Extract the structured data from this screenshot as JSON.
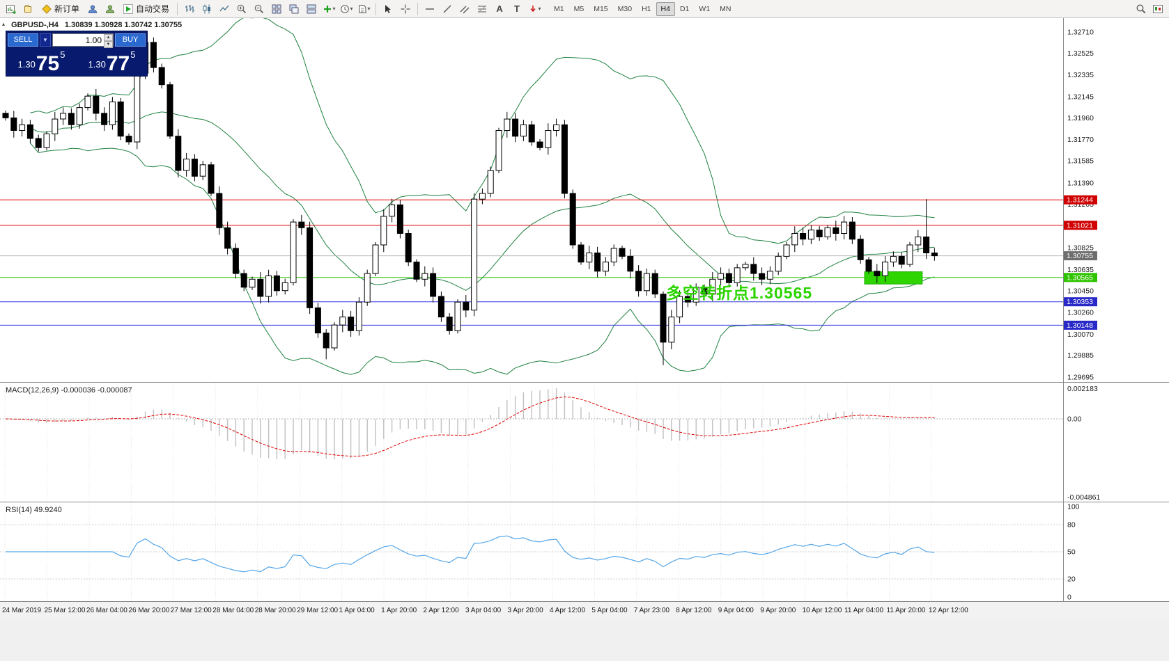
{
  "toolbar": {
    "new_order": "新订单",
    "auto_trading": "自动交易",
    "text_tool": "A",
    "label_tool": "T",
    "timeframes": [
      "M1",
      "M5",
      "M15",
      "M30",
      "H1",
      "H4",
      "D1",
      "W1",
      "MN"
    ],
    "active_timeframe": "H4"
  },
  "chart": {
    "symbol_period": "GBPUSD-,H4",
    "ohlc": "1.30839 1.30928 1.30742 1.30755"
  },
  "trade_panel": {
    "sell_label": "SELL",
    "buy_label": "BUY",
    "volume": "1.00",
    "sell_price_small": "1.30",
    "sell_price_big": "75",
    "sell_price_sup": "5",
    "buy_price_small": "1.30",
    "buy_price_big": "77",
    "buy_price_sup": "5"
  },
  "annotation": {
    "text": "多空转折点1.30565",
    "color": "#2bd400"
  },
  "levels": [
    {
      "price": "1.31244",
      "value": 1.31244,
      "color": "#d00000",
      "line_color": "#e00000"
    },
    {
      "price": "1.31021",
      "value": 1.31021,
      "color": "#d00000",
      "line_color": "#e00000"
    },
    {
      "price": "1.30755",
      "value": 1.30755,
      "color": "#6e6e6e",
      "line_color": "#b8b8b8"
    },
    {
      "price": "1.30565",
      "value": 1.30565,
      "color": "#2fc400",
      "line_color": "#2fc400"
    },
    {
      "price": "1.30353",
      "value": 1.30353,
      "color": "#2929c8",
      "line_color": "#3232e0"
    },
    {
      "price": "1.30148",
      "value": 1.30148,
      "color": "#2929c8",
      "line_color": "#3232e0"
    }
  ],
  "price_axis": {
    "ticks": [
      "1.32710",
      "1.32525",
      "1.32335",
      "1.32145",
      "1.31960",
      "1.31770",
      "1.31585",
      "1.31390",
      "1.31205",
      "1.30825",
      "1.30635",
      "1.30450",
      "1.30260",
      "1.30070",
      "1.29885",
      "1.29695"
    ]
  },
  "time_axis": [
    "24 Mar 2019",
    "25 Mar 12:00",
    "26 Mar 04:00",
    "26 Mar 20:00",
    "27 Mar 12:00",
    "28 Mar 04:00",
    "28 Mar 20:00",
    "29 Mar 12:00",
    "1 Apr 04:00",
    "1 Apr 20:00",
    "2 Apr 12:00",
    "3 Apr 04:00",
    "3 Apr 20:00",
    "4 Apr 12:00",
    "5 Apr 04:00",
    "7 Apr 23:00",
    "8 Apr 12:00",
    "9 Apr 04:00",
    "9 Apr 20:00",
    "10 Apr 12:00",
    "11 Apr 04:00",
    "11 Apr 20:00",
    "12 Apr 12:00"
  ],
  "macd": {
    "label": "MACD(12,26,9) -0.000036 -0.000087",
    "scale_top": "0.002183",
    "scale_zero": "0.00",
    "scale_bottom": "-0.004861"
  },
  "rsi": {
    "label": "RSI(14) 49.9240",
    "scale": [
      {
        "label": "100",
        "value": 100
      },
      {
        "label": "80",
        "value": 80
      },
      {
        "label": "50",
        "value": 50
      },
      {
        "label": "20",
        "value": 20
      },
      {
        "label": "0",
        "value": 0
      }
    ],
    "level_lines": [
      80,
      50,
      20
    ]
  },
  "highlight_box": {
    "start_index": 105,
    "end_index": 111,
    "price_top": 1.30615,
    "price_bottom": 1.30508,
    "color": "#2fd500",
    "border": "#18a800"
  },
  "chart_data": {
    "type": "candlestick",
    "symbol": "GBPUSD-",
    "timeframe": "H4",
    "ohlc_display": {
      "open": "1.30839",
      "high": "1.30928",
      "low": "1.30742",
      "close": "1.30755"
    },
    "price_range": [
      1.29652,
      1.32832
    ],
    "first_open": 1.32,
    "closes": [
      1.3196,
      1.3185,
      1.319,
      1.3178,
      1.317,
      1.3182,
      1.3195,
      1.32,
      1.319,
      1.3205,
      1.3215,
      1.32,
      1.319,
      1.321,
      1.318,
      1.3175,
      1.3235,
      1.3262,
      1.324,
      1.3225,
      1.318,
      1.315,
      1.316,
      1.3145,
      1.3155,
      1.313,
      1.31,
      1.3082,
      1.306,
      1.3048,
      1.3055,
      1.304,
      1.3058,
      1.3045,
      1.3052,
      1.3105,
      1.31,
      1.303,
      1.3008,
      1.2995,
      1.3015,
      1.3022,
      1.301,
      1.3035,
      1.306,
      1.3085,
      1.311,
      1.312,
      1.3095,
      1.307,
      1.3055,
      1.306,
      1.304,
      1.3022,
      1.301,
      1.3035,
      1.3028,
      1.3125,
      1.313,
      1.315,
      1.3185,
      1.3195,
      1.318,
      1.319,
      1.3175,
      1.317,
      1.3185,
      1.319,
      1.313,
      1.3085,
      1.307,
      1.3078,
      1.3062,
      1.307,
      1.3082,
      1.3075,
      1.3062,
      1.3045,
      1.306,
      1.3042,
      1.3,
      1.3022,
      1.304,
      1.3035,
      1.3048,
      1.3042,
      1.3055,
      1.306,
      1.3052,
      1.3065,
      1.3068,
      1.306,
      1.3055,
      1.3062,
      1.3075,
      1.3085,
      1.3095,
      1.309,
      1.3098,
      1.3092,
      1.31,
      1.3095,
      1.3105,
      1.309,
      1.3072,
      1.3062,
      1.3058,
      1.307,
      1.3075,
      1.3068,
      1.3085,
      1.3092,
      1.3078,
      1.30755
    ],
    "wick_overrides": {
      "17": {
        "high": 1.3272
      },
      "39": {
        "low": 1.2985
      },
      "80": {
        "low": 1.298
      },
      "112": {
        "high": 1.3125
      }
    },
    "indicators": {
      "bollinger": {
        "period": 20,
        "deviation": 2,
        "color": "#1e8040"
      },
      "macd": {
        "fast": 12,
        "slow": 26,
        "signal": 9,
        "histogram_color": "#c0c0c0",
        "signal_color": "#e00000"
      },
      "rsi": {
        "period": 14,
        "color": "#55a6e8"
      }
    }
  }
}
